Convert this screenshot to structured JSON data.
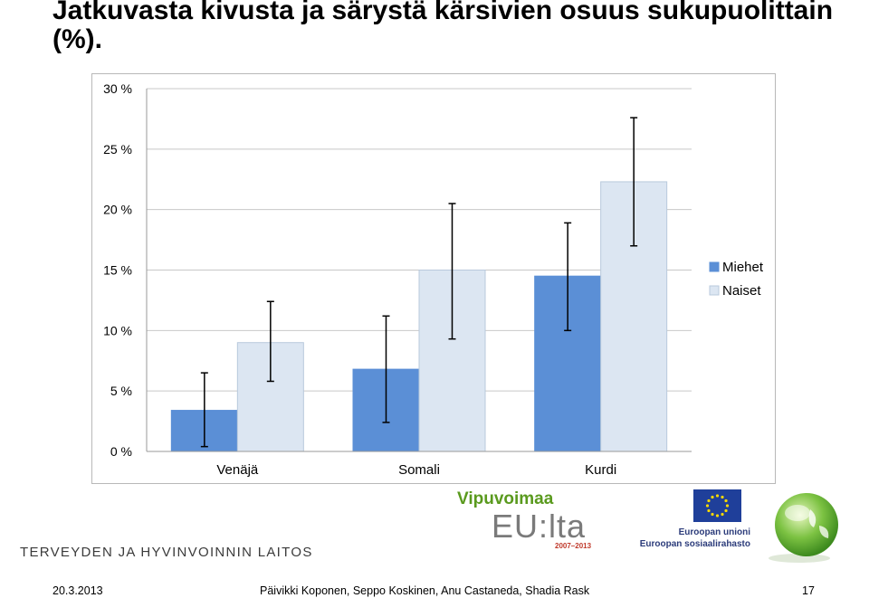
{
  "title": "Jatkuvasta kivusta ja särystä kärsivien osuus sukupuolittain (%).",
  "chart_data": {
    "type": "bar",
    "categories": [
      "Venäjä",
      "Somali",
      "Kurdi"
    ],
    "series": [
      {
        "name": "Miehet",
        "color": "#5b8fd6",
        "values": [
          3.4,
          6.8,
          14.5
        ],
        "error_low": [
          0.4,
          2.4,
          10.0
        ],
        "error_high": [
          6.5,
          11.2,
          18.9
        ]
      },
      {
        "name": "Naiset",
        "color": "#dce6f2",
        "values": [
          9.0,
          15.0,
          22.3
        ],
        "error_low": [
          5.8,
          9.3,
          17.0
        ],
        "error_high": [
          12.4,
          20.5,
          27.6
        ]
      }
    ],
    "ylim": [
      0,
      30
    ],
    "yticks": [
      "0 %",
      "5 %",
      "10 %",
      "15 %",
      "20 %",
      "25 %",
      "30 %"
    ],
    "grid": true,
    "legend": "right"
  },
  "branding": {
    "institute": "TERVEYDEN JA HYVINVOINNIN LAITOS",
    "program_top": "Vipuvoimaa",
    "program_main": "EU:lta",
    "program_years": "2007–2013",
    "eu_line1": "Euroopan unioni",
    "eu_line2": "Euroopan sosiaalirahasto"
  },
  "footer": {
    "date": "20.3.2013",
    "authors": "Päivikki Koponen, Seppo Koskinen, Anu Castaneda, Shadia Rask",
    "page": "17"
  }
}
